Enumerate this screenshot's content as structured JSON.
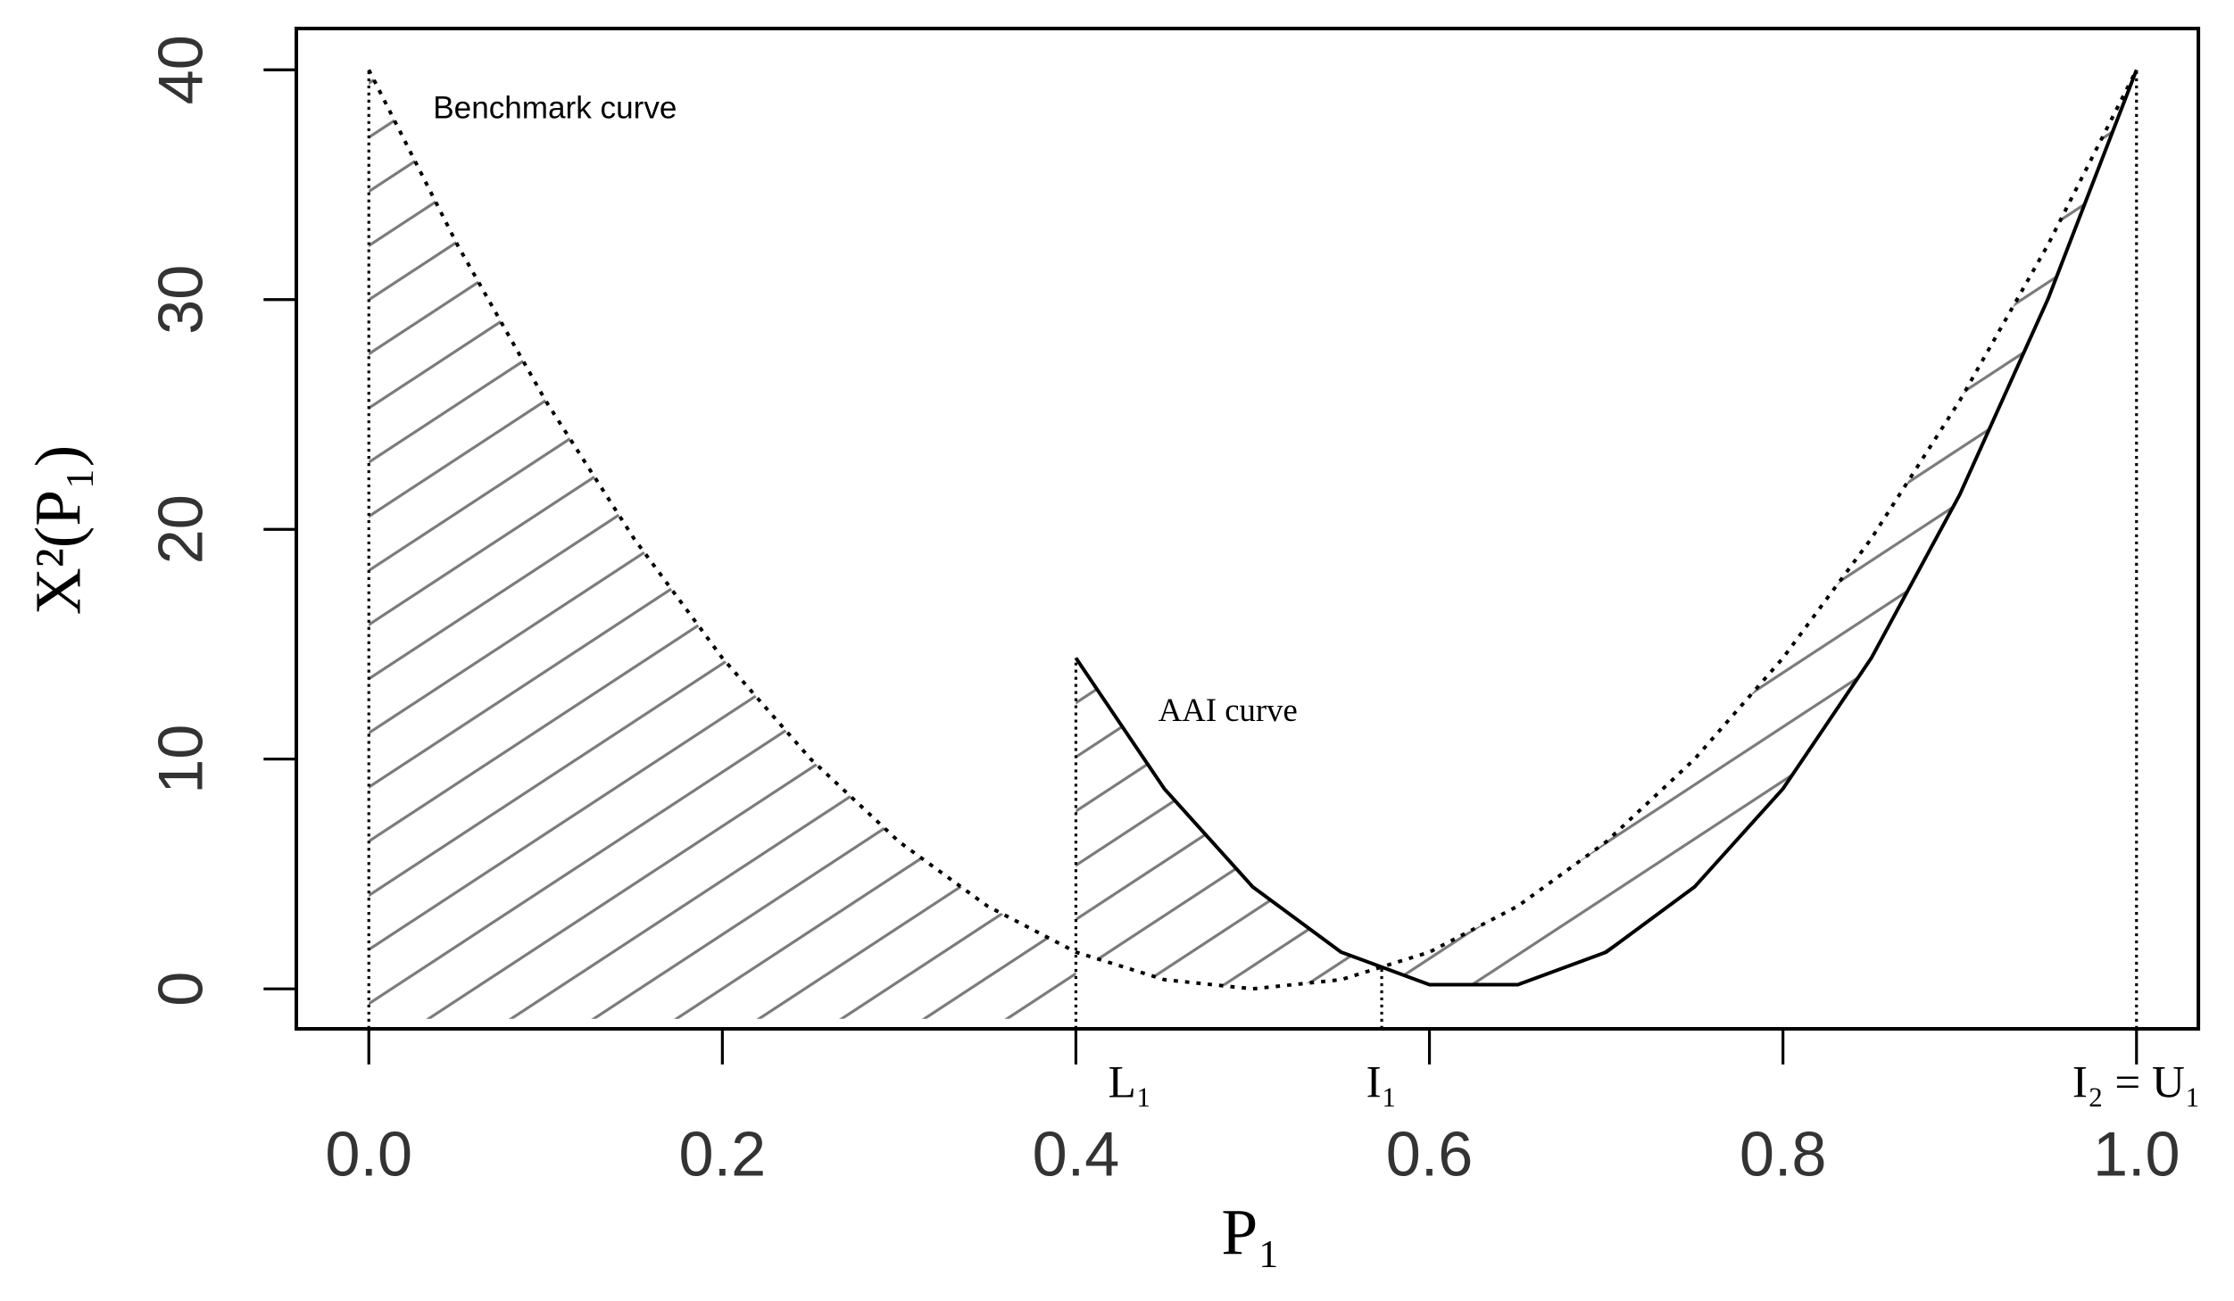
{
  "chart_data": {
    "type": "line",
    "xlabel": "P₁",
    "ylabel": "X²(P₁)",
    "xlim": [
      -0.041,
      1.035
    ],
    "ylim": [
      -1.74,
      41.8
    ],
    "xticks": [
      {
        "value": 0,
        "label": "0.0"
      },
      0.2,
      0.4,
      0.6,
      0.8,
      {
        "value": 1,
        "label": "1.0"
      }
    ],
    "yticks": [
      0,
      10,
      20,
      30,
      40
    ],
    "series": [
      {
        "name": "Benchmark curve",
        "color": "#000000",
        "style": "dotted",
        "x": [
          0,
          0.05,
          0.1,
          0.15,
          0.2,
          0.25,
          0.3,
          0.35,
          0.4,
          0.45,
          0.5,
          0.55,
          0.6,
          0.65,
          0.7,
          0.75,
          0.8,
          0.85,
          0.9,
          0.95,
          1
        ],
        "values": [
          40,
          32.4,
          25.6,
          19.6,
          14.4,
          10,
          6.4,
          3.6,
          1.6,
          0.4,
          0,
          0.4,
          1.6,
          3.6,
          6.4,
          10,
          14.4,
          19.6,
          25.6,
          32.4,
          40
        ]
      },
      {
        "name": "AAI curve",
        "color": "#000000",
        "style": "solid",
        "x": [
          0.4,
          0.45,
          0.5,
          0.55,
          0.6,
          0.65,
          0.7,
          0.75,
          0.8,
          0.85,
          0.9,
          0.95,
          1
        ],
        "values": [
          14.4,
          8.71,
          4.44,
          1.6,
          0.18,
          0.18,
          1.6,
          4.44,
          8.71,
          14.4,
          21.51,
          30.04,
          40
        ]
      }
    ],
    "markers": [
      {
        "x": 0
      },
      {
        "x": 0.4,
        "label": "L₁"
      },
      {
        "x": 0.573,
        "label": "I₁"
      },
      {
        "x": 1,
        "label": "I₂ = U₁"
      }
    ],
    "hatch_color": "#7a7a7a"
  }
}
